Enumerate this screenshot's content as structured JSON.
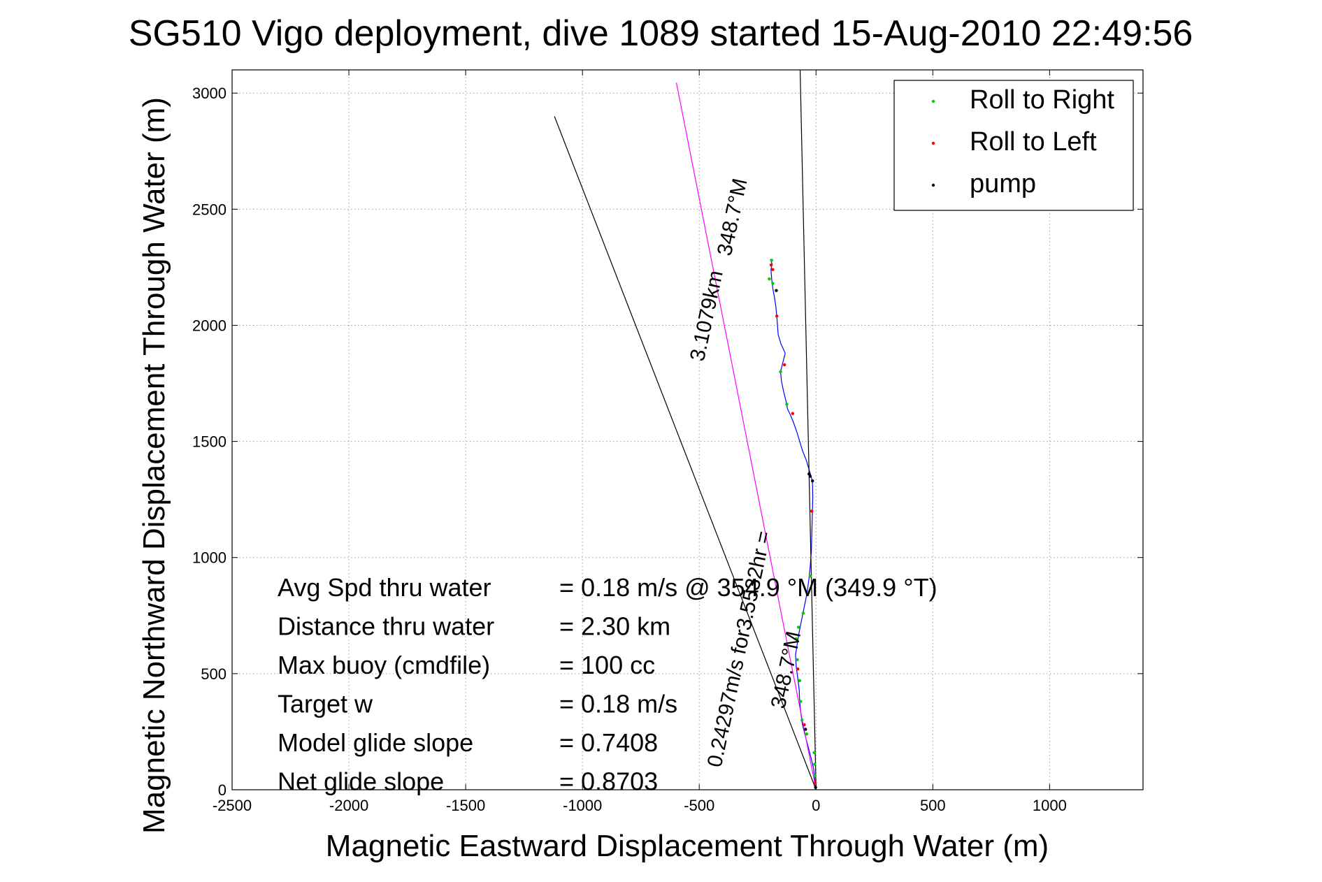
{
  "chart_data": {
    "type": "line",
    "title": "SG510 Vigo deployment, dive 1089 started 15-Aug-2010 22:49:56",
    "xlabel": "Magnetic Eastward Displacement Through Water (m)",
    "ylabel": "Magnetic Northward Displacement Through Water (m)",
    "xlim": [
      -2500,
      1400
    ],
    "ylim": [
      0,
      3100
    ],
    "xticks": [
      -2500,
      -2000,
      -1500,
      -1000,
      -500,
      0,
      500,
      1000
    ],
    "xtick_labels": [
      "-2500",
      "-2000",
      "-1500",
      "-1000",
      "-500",
      "0",
      "500",
      "1000"
    ],
    "yticks": [
      0,
      500,
      1000,
      1500,
      2000,
      2500,
      3000
    ],
    "ytick_labels": [
      "0",
      "500",
      "1000",
      "1500",
      "2000",
      "2500",
      "3000"
    ],
    "grid": true,
    "legend_position": "top-right",
    "legend": [
      {
        "label": "Roll to Right",
        "color": "#00cc00"
      },
      {
        "label": "Roll to Left",
        "color": "#ff0000"
      },
      {
        "label": "pump",
        "color": "#000000"
      }
    ],
    "series": [
      {
        "color": "#0000ff",
        "points": [
          [
            0,
            0
          ],
          [
            -5,
            40
          ],
          [
            -10,
            90
          ],
          [
            -22,
            140
          ],
          [
            -35,
            190
          ],
          [
            -48,
            240
          ],
          [
            -58,
            280
          ],
          [
            -65,
            330
          ],
          [
            -70,
            380
          ],
          [
            -72,
            430
          ],
          [
            -78,
            480
          ],
          [
            -85,
            530
          ],
          [
            -88,
            580
          ],
          [
            -80,
            630
          ],
          [
            -72,
            680
          ],
          [
            -62,
            730
          ],
          [
            -50,
            790
          ],
          [
            -38,
            850
          ],
          [
            -30,
            910
          ],
          [
            -24,
            970
          ],
          [
            -20,
            1030
          ],
          [
            -18,
            1100
          ],
          [
            -16,
            1180
          ],
          [
            -14,
            1260
          ],
          [
            -15,
            1320
          ],
          [
            -20,
            1345
          ],
          [
            -30,
            1380
          ],
          [
            -42,
            1420
          ],
          [
            -58,
            1460
          ],
          [
            -70,
            1500
          ],
          [
            -82,
            1540
          ],
          [
            -96,
            1580
          ],
          [
            -108,
            1610
          ],
          [
            -122,
            1640
          ],
          [
            -130,
            1680
          ],
          [
            -140,
            1720
          ],
          [
            -148,
            1760
          ],
          [
            -152,
            1800
          ],
          [
            -142,
            1840
          ],
          [
            -132,
            1880
          ],
          [
            -150,
            1920
          ],
          [
            -162,
            1960
          ],
          [
            -165,
            2000
          ],
          [
            -168,
            2040
          ],
          [
            -172,
            2080
          ],
          [
            -178,
            2120
          ],
          [
            -185,
            2160
          ],
          [
            -190,
            2200
          ],
          [
            -193,
            2240
          ],
          [
            -188,
            2265
          ],
          [
            -196,
            2285
          ]
        ]
      },
      {
        "color": "#ff00ff",
        "points": [
          [
            0,
            0
          ],
          [
            -598,
            3045
          ]
        ]
      },
      {
        "color": "#000000",
        "points": [
          [
            0,
            0
          ],
          [
            -1120,
            2900
          ]
        ]
      },
      {
        "color": "#000000",
        "points": [
          [
            0,
            0
          ],
          [
            -68,
            3100
          ]
        ]
      }
    ],
    "markers": {
      "roll_right": [
        [
          -4,
          60
        ],
        [
          -6,
          110
        ],
        [
          -8,
          160
        ],
        [
          -40,
          240
        ],
        [
          -60,
          300
        ],
        [
          -66,
          380
        ],
        [
          -70,
          470
        ],
        [
          -80,
          560
        ],
        [
          -85,
          650
        ],
        [
          -75,
          700
        ],
        [
          -55,
          760
        ],
        [
          -25,
          920
        ],
        [
          -125,
          1660
        ],
        [
          -152,
          1800
        ],
        [
          -200,
          2200
        ],
        [
          -190,
          2280
        ],
        [
          -185,
          2180
        ]
      ],
      "roll_left": [
        [
          -3,
          30
        ],
        [
          -50,
          280
        ],
        [
          -78,
          520
        ],
        [
          -18,
          1200
        ],
        [
          -100,
          1620
        ],
        [
          -135,
          1830
        ],
        [
          -168,
          2040
        ],
        [
          -185,
          2240
        ],
        [
          -192,
          2260
        ]
      ],
      "pump": [
        [
          -2,
          10
        ],
        [
          -45,
          260
        ],
        [
          -15,
          1330
        ],
        [
          -25,
          1350
        ],
        [
          -30,
          1360
        ],
        [
          -170,
          2150
        ]
      ]
    },
    "annotations": [
      {
        "text": "348.7°M",
        "x": -330,
        "y": 2460,
        "rotation": -78
      },
      {
        "text": "3.1079km",
        "x": -440,
        "y": 2035,
        "rotation": -78
      },
      {
        "text": "0.24297m/s for3.5532hr =",
        "x": -300,
        "y": 600,
        "rotation": -78
      },
      {
        "text": "348.7°M",
        "x": -100,
        "y": 510,
        "rotation": -78
      }
    ],
    "stats": [
      {
        "label": "Avg Spd thru water",
        "value": "=  0.18 m/s @ 354.9 °M (349.9 °T)"
      },
      {
        "label": "Distance thru water",
        "value": "=  2.30 km"
      },
      {
        "label": "Max buoy (cmdfile)",
        "value": "= 100 cc"
      },
      {
        "label": "Target w",
        "value": "= 0.18 m/s"
      },
      {
        "label": "Model glide slope",
        "value": "= 0.7408"
      },
      {
        "label": "Net glide slope",
        "value": "= 0.8703"
      }
    ]
  }
}
